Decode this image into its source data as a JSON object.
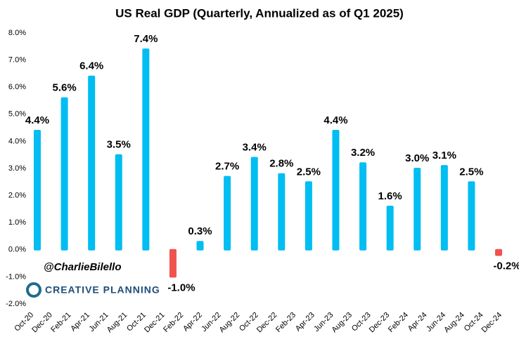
{
  "chart_data": {
    "type": "bar",
    "title": "US Real GDP (Quarterly, Annualized as of Q1 2025)",
    "x_labels": [
      "Oct-20",
      "Dec-20",
      "Feb-21",
      "Apr-21",
      "Jun-21",
      "Aug-21",
      "Oct-21",
      "Dec-21",
      "Feb-22",
      "Apr-22",
      "Jun-22",
      "Aug-22",
      "Oct-22",
      "Dec-22",
      "Feb-23",
      "Apr-23",
      "Jun-23",
      "Aug-23",
      "Oct-23",
      "Dec-23",
      "Feb-24",
      "Apr-24",
      "Jun-24",
      "Aug-24",
      "Oct-24",
      "Dec-24"
    ],
    "values": [
      4.4,
      5.6,
      6.4,
      3.5,
      7.4,
      -1.0,
      0.3,
      2.7,
      3.4,
      2.8,
      2.5,
      4.4,
      3.2,
      1.6,
      3.0,
      3.1,
      2.5,
      -0.2
    ],
    "value_labels": [
      "4.4%",
      "5.6%",
      "6.4%",
      "3.5%",
      "7.4%",
      "-1.0%",
      "0.3%",
      "2.7%",
      "3.4%",
      "2.8%",
      "2.5%",
      "4.4%",
      "3.2%",
      "1.6%",
      "3.0%",
      "3.1%",
      "2.5%",
      "-0.2%"
    ],
    "color": "#00bdf2",
    "negative_color": "#f0524e",
    "ylim": [
      -2,
      8
    ],
    "yticks": [
      {
        "value": -2,
        "label": "-2.0%"
      },
      {
        "value": -1,
        "label": "-1.0%"
      },
      {
        "value": 0,
        "label": "0.0%"
      },
      {
        "value": 1,
        "label": "1.0%"
      },
      {
        "value": 2,
        "label": "2.0%"
      },
      {
        "value": 3,
        "label": "3.0%"
      },
      {
        "value": 4,
        "label": "4.0%"
      },
      {
        "value": 5,
        "label": "5.0%"
      },
      {
        "value": 6,
        "label": "6.0%"
      },
      {
        "value": 7,
        "label": "7.0%"
      },
      {
        "value": 8,
        "label": "8.0%"
      }
    ],
    "annotations": [
      "@CharlieBilello",
      "CREATIVE PLANNING"
    ]
  }
}
